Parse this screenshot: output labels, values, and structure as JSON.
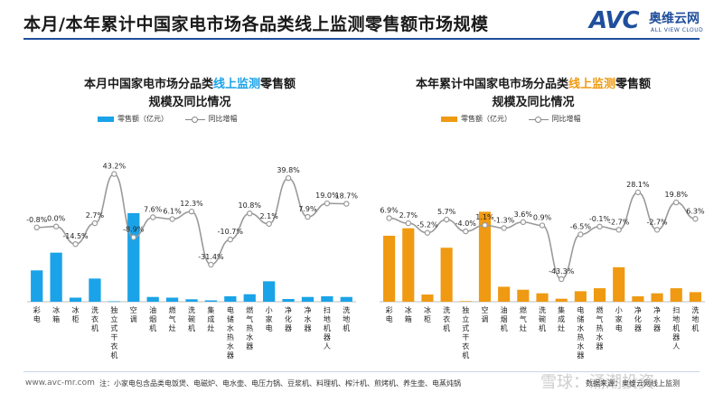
{
  "page_title": "本月/本年累计中国家电市场各品类线上监测零售额市场规模",
  "logo": {
    "mark": "AVC",
    "cn": "奥维云网",
    "en": "ALL VIEW CLOUD"
  },
  "footer": {
    "url": "www.avc-mr.com",
    "note": "注：小家电包含品类电饭煲、电磁炉、电水壶、电压力锅、豆浆机、料理机、榨汁机、煎烤机、养生壶、电蒸炖锅",
    "source": "数据来源：奥维云网线上监测",
    "watermark": "雪球：涌潮投资"
  },
  "colors": {
    "blue": "#1aa3e8",
    "orange": "#ef9a12",
    "line": "#9a9a9a"
  },
  "left": {
    "title_pre": "本月中国家电市场分品类",
    "title_hl": "线上监测",
    "title_post": "零售额",
    "title_line2": "规模及同比情况",
    "legend_bar": "零售额（亿元）",
    "legend_line": "同比增幅"
  },
  "right": {
    "title_pre": "本年累计中国家电市场分品类",
    "title_hl": "线上监测",
    "title_post": "零售额",
    "title_line2": "规模及同比情况",
    "legend_bar": "零售额（亿元）",
    "legend_line": "同比增幅"
  },
  "chart_data": [
    {
      "type": "bar",
      "title": "本月中国家电市场分品类线上监测零售额规模及同比情况",
      "categories": [
        "彩电",
        "冰箱",
        "冰柜",
        "洗衣机",
        "独立式干衣机",
        "空调",
        "油烟机",
        "燃气灶",
        "洗碗机",
        "集成灶",
        "电储水热水器",
        "燃气热水器",
        "小家电",
        "净化器",
        "净水器",
        "扫地机器人",
        "洗地机"
      ],
      "series": [
        {
          "name": "零售额（亿元）",
          "kind": "bar",
          "values": [
            23,
            36,
            3,
            17,
            0.3,
            65,
            3.5,
            3,
            1.8,
            1,
            4,
            5.5,
            15,
            2,
            3.5,
            4,
            3.5
          ]
        },
        {
          "name": "同比增幅",
          "kind": "line",
          "values": [
            -0.8,
            0.0,
            -14.5,
            2.7,
            43.2,
            -8.9,
            7.6,
            6.1,
            12.3,
            -31.4,
            -10.7,
            10.8,
            2.1,
            39.8,
            7.9,
            19.0,
            18.7
          ],
          "labels": [
            "-0.8%",
            "0.0%",
            "-14.5%",
            "2.7%",
            "43.2%",
            "-8.9%",
            "7.6%",
            "6.1%",
            "12.3%",
            "-31.4%",
            "-10.7%",
            "10.8%",
            "2.1%",
            "39.8%",
            "7.9%",
            "19.0%",
            "18.7%"
          ]
        }
      ],
      "ylim_bar": [
        0,
        110
      ],
      "ylim_line": [
        -50,
        60
      ]
    },
    {
      "type": "bar",
      "title": "本年累计中国家电市场分品类线上监测零售额规模及同比情况",
      "categories": [
        "彩电",
        "冰箱",
        "冰柜",
        "洗衣机",
        "独立式干衣机",
        "空调",
        "油烟机",
        "燃气灶",
        "洗碗机",
        "集成灶",
        "电储水热水器",
        "燃气热水器",
        "小家电",
        "净化器",
        "净水器",
        "扫地机器人",
        "洗地机"
      ],
      "series": [
        {
          "name": "零售额（亿元）",
          "kind": "bar",
          "values": [
            220,
            245,
            24,
            180,
            2,
            300,
            50,
            40,
            28,
            10,
            35,
            45,
            115,
            18,
            28,
            45,
            32
          ]
        },
        {
          "name": "同比增幅",
          "kind": "line",
          "values": [
            6.9,
            2.7,
            -5.2,
            5.7,
            -4.0,
            1.1,
            -1.3,
            3.6,
            0.9,
            -43.3,
            -6.5,
            -0.1,
            -2.7,
            28.1,
            -2.7,
            19.8,
            6.3
          ],
          "labels": [
            "6.9%",
            "2.7%",
            "-5.2%",
            "5.7%",
            "-4.0%",
            "1.1%",
            "-1.3%",
            "3.6%",
            "0.9%",
            "-43.3%",
            "-6.5%",
            "-0.1%",
            "-2.7%",
            "28.1%",
            "-2.7%",
            "19.8%",
            "6.3%"
          ]
        }
      ],
      "ylim_bar": [
        0,
        500
      ],
      "ylim_line": [
        -50,
        60
      ]
    }
  ]
}
